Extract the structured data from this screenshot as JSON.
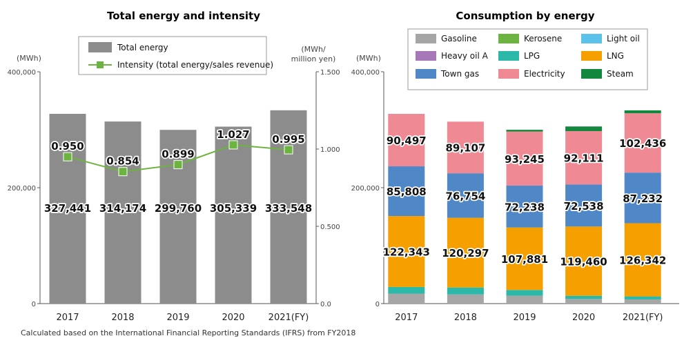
{
  "colors": {
    "total_bar": "#8c8c8c",
    "intensity_line": "#6cb33f",
    "Gasoline": "#a6a6a6",
    "Heavy oil A": "#a678b8",
    "Town gas": "#4f87c7",
    "Kerosene": "#6cb33f",
    "LPG": "#2bb8a8",
    "Electricity": "#ef8a94",
    "Light oil": "#5bc2ec",
    "LNG": "#f5a000",
    "Steam": "#13873d"
  },
  "footnote": "Calculated based on the International Financial Reporting Standards (IFRS) from FY2018",
  "chart_data": [
    {
      "type": "bar",
      "title": "Total energy and intensity",
      "categories": [
        "2017",
        "2018",
        "2019",
        "2020",
        "2021"
      ],
      "fy_suffix": "(FY)",
      "ylabel": "(MWh)",
      "y2label_line1": "(MWh/",
      "y2label_line2": "million yen)",
      "ylim": [
        0,
        400000
      ],
      "yticks": [
        "400,000",
        "200,000",
        "0"
      ],
      "y2lim": [
        0,
        1.5
      ],
      "y2ticks": [
        "1.500",
        "1.000",
        "0.500",
        "0.0"
      ],
      "series": [
        {
          "name": "Total energy",
          "type": "bar",
          "values": [
            327441,
            314174,
            299760,
            305339,
            333548
          ],
          "labels": [
            "327,441",
            "314,174",
            "299,760",
            "305,339",
            "333,548"
          ]
        },
        {
          "name": "Intensity (total energy/sales revenue)",
          "type": "line",
          "axis": "right",
          "values": [
            0.95,
            0.854,
            0.899,
            1.027,
            0.995
          ],
          "labels": [
            "0.950",
            "0.854",
            "0.899",
            "1.027",
            "0.995"
          ]
        }
      ],
      "legend": [
        "Total energy",
        "Intensity (total energy/sales revenue)"
      ],
      "legend_position": "top-center"
    },
    {
      "type": "bar",
      "stacked": true,
      "title": "Consumption by energy",
      "categories": [
        "2017",
        "2018",
        "2019",
        "2020",
        "2021"
      ],
      "fy_suffix": "(FY)",
      "ylabel": "(MWh)",
      "ylim": [
        0,
        400000
      ],
      "yticks": [
        "400,000",
        "200,000",
        "0"
      ],
      "legend": [
        "Gasoline",
        "Kerosene",
        "Light oil",
        "Heavy oil A",
        "LPG",
        "LNG",
        "Town gas",
        "Electricity",
        "Steam"
      ],
      "legend_position": "top",
      "series": [
        {
          "name": "Gasoline",
          "values": [
            17200,
            15800,
            13500,
            8000,
            7200
          ]
        },
        {
          "name": "LPG",
          "values": [
            11500,
            12000,
            10000,
            5500,
            5200
          ]
        },
        {
          "name": "LNG",
          "values": [
            122343,
            120297,
            107881,
            119460,
            126342
          ],
          "labels": [
            "122,343",
            "120,297",
            "107,881",
            "119,460",
            "126,342"
          ]
        },
        {
          "name": "Town gas",
          "values": [
            85808,
            76754,
            72238,
            72538,
            87232
          ],
          "labels": [
            "85,808",
            "76,754",
            "72,238",
            "72,538",
            "87,232"
          ]
        },
        {
          "name": "Electricity",
          "values": [
            90497,
            89107,
            93245,
            92111,
            102436
          ],
          "labels": [
            "90,497",
            "89,107",
            "93,245",
            "92,111",
            "102,436"
          ]
        },
        {
          "name": "Steam",
          "values": [
            0,
            0,
            3000,
            8000,
            5000
          ]
        }
      ]
    }
  ]
}
